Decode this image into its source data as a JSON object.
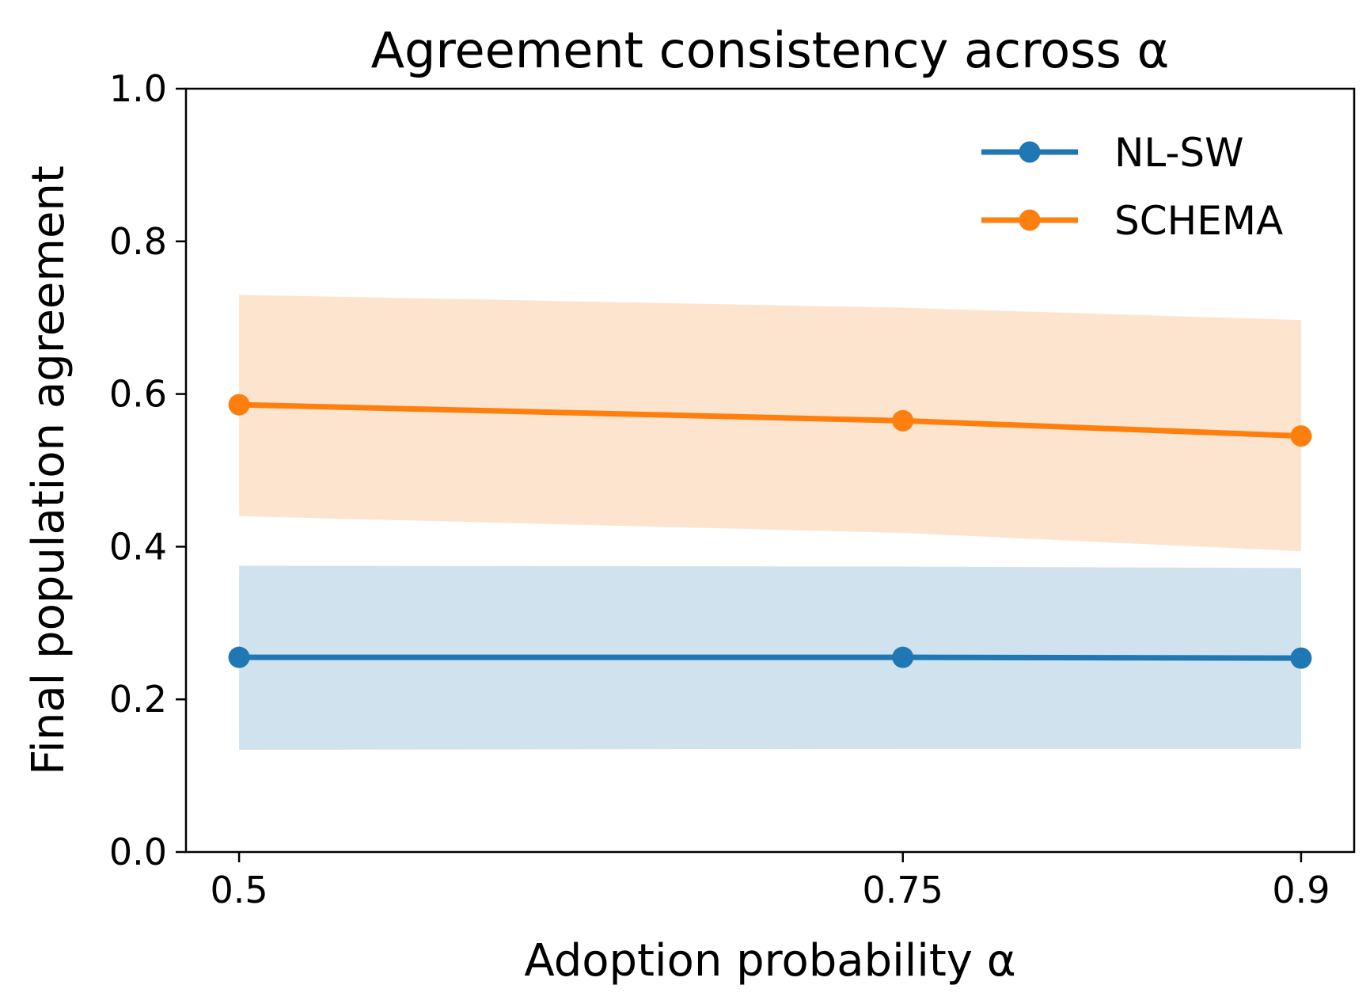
{
  "chart_data": {
    "type": "line",
    "title": "Agreement consistency across α",
    "xlabel": "Adoption probability α",
    "ylabel": "Final population agreement",
    "x": [
      0.5,
      0.75,
      0.9
    ],
    "x_tick_labels": [
      "0.5",
      "0.75",
      "0.9"
    ],
    "xlim": [
      0.48,
      0.92
    ],
    "ylim": [
      0.0,
      1.0
    ],
    "y_ticks": [
      0.0,
      0.2,
      0.4,
      0.6,
      0.8,
      1.0
    ],
    "y_tick_labels": [
      "0.0",
      "0.2",
      "0.4",
      "0.6",
      "0.8",
      "1.0"
    ],
    "grid": false,
    "legend_position": "top-right",
    "series": [
      {
        "name": "NL-SW",
        "color": "#1f77b4",
        "band_color": "#d1e2ef",
        "values": [
          0.255,
          0.255,
          0.254
        ],
        "lower": [
          0.134,
          0.135,
          0.135
        ],
        "upper": [
          0.375,
          0.374,
          0.372
        ]
      },
      {
        "name": "SCHEMA",
        "color": "#ff7f0e",
        "band_color": "#fde4cf",
        "values": [
          0.586,
          0.565,
          0.545
        ],
        "lower": [
          0.44,
          0.418,
          0.394
        ],
        "upper": [
          0.73,
          0.713,
          0.697
        ]
      }
    ]
  }
}
